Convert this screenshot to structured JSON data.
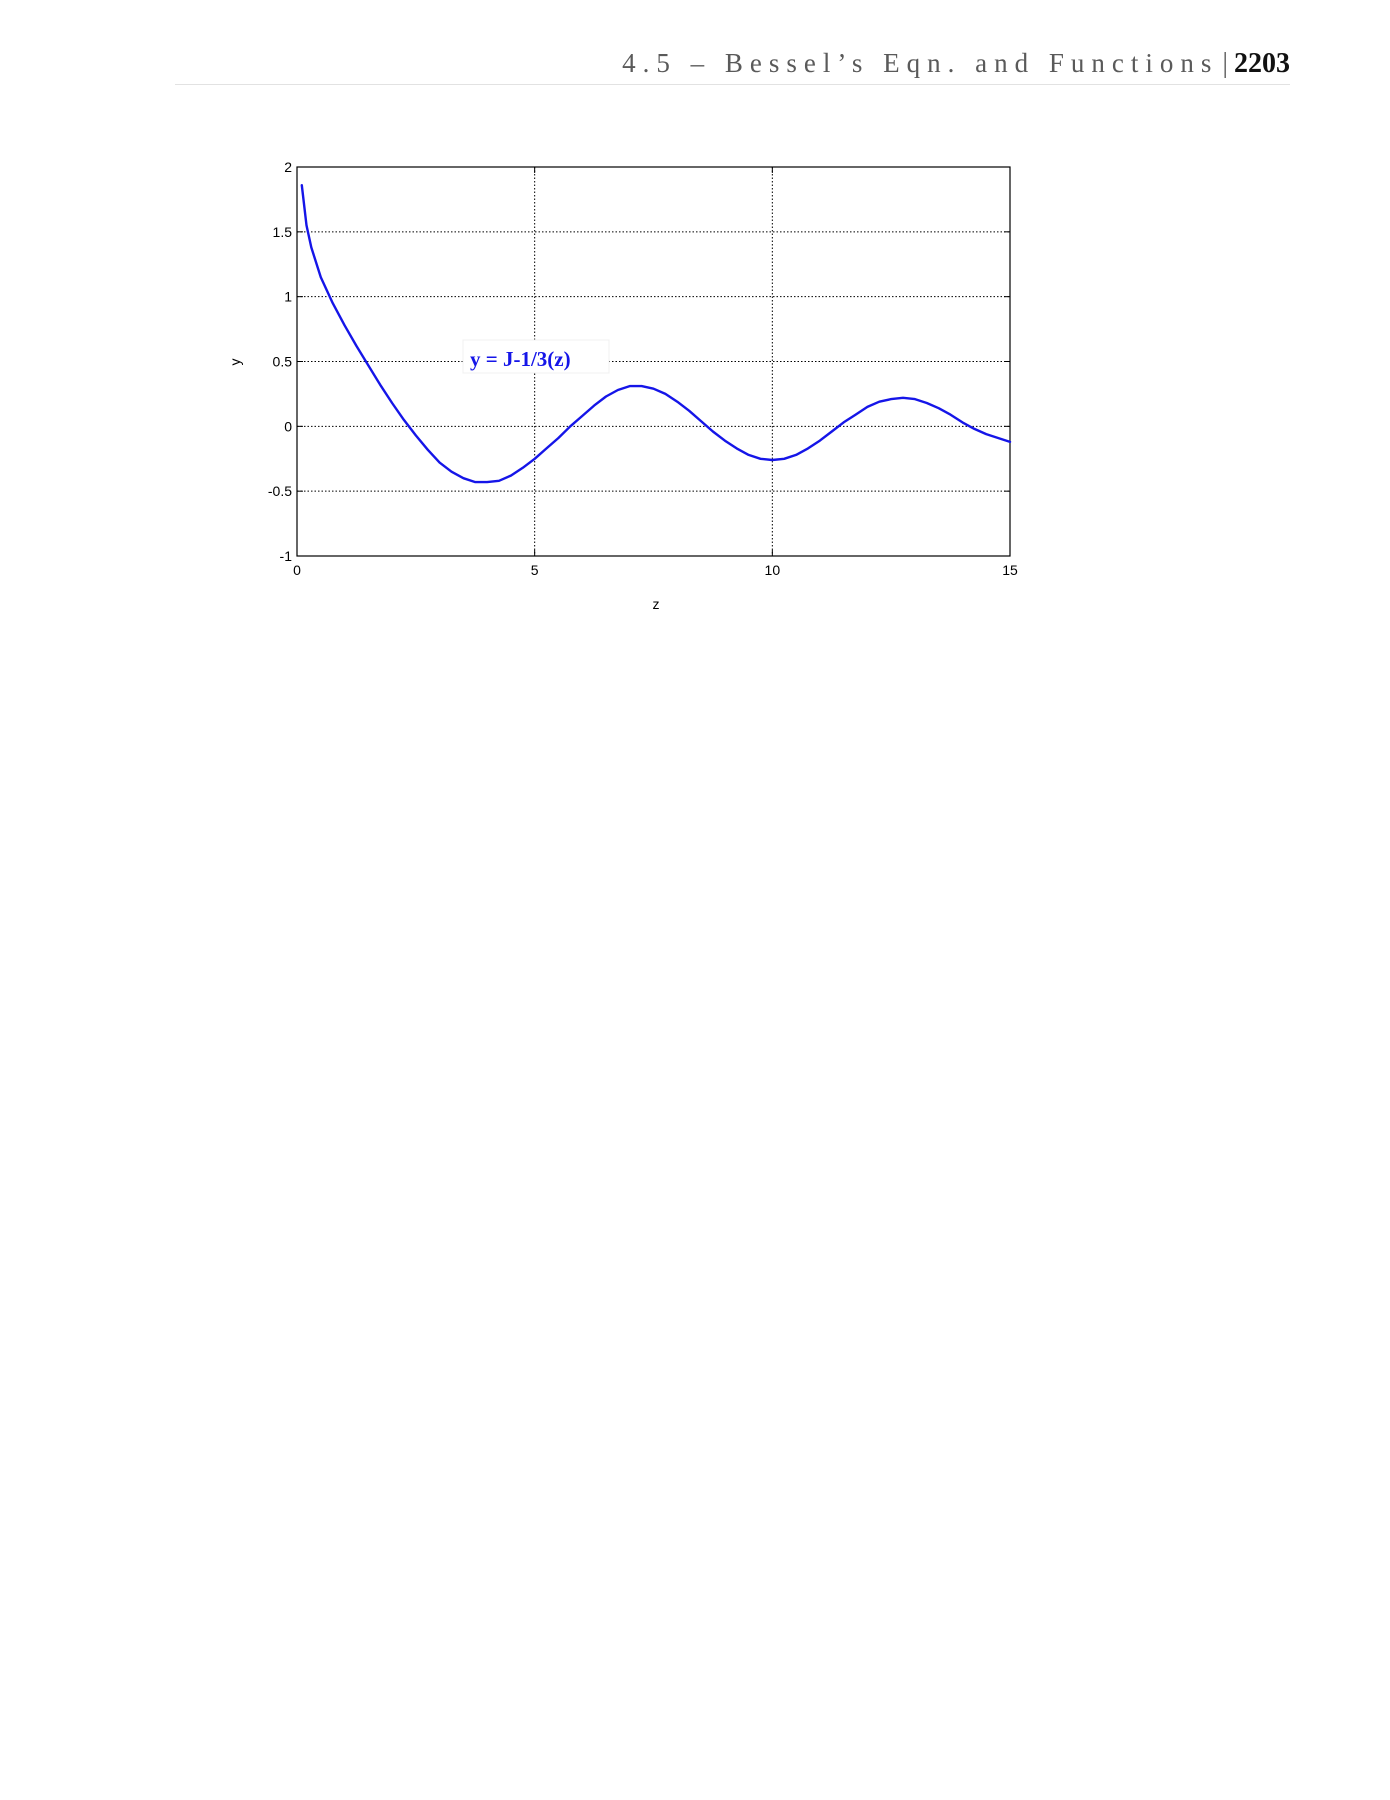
{
  "header": {
    "running_title": "4.5 – Bessel’s Eqn. and Functions",
    "separator": "|",
    "page_number": "2203"
  },
  "chart_data": {
    "type": "line",
    "xlabel": "z",
    "ylabel": "y",
    "xlim": [
      0,
      15
    ],
    "ylim": [
      -1,
      2
    ],
    "x_ticks": [
      0,
      5,
      10,
      15
    ],
    "y_ticks": [
      -1,
      -0.5,
      0,
      0.5,
      1,
      1.5,
      2
    ],
    "x_tick_labels": [
      "0",
      "5",
      "10",
      "15"
    ],
    "y_tick_labels": [
      "-1",
      "-0.5",
      "0",
      "0.5",
      "1",
      "1.5",
      "2"
    ],
    "grid": true,
    "annotation": "y = J-1/3(z)",
    "series": [
      {
        "color": "#1515e8",
        "x": [
          0.1,
          0.2,
          0.3,
          0.5,
          0.75,
          1.0,
          1.25,
          1.5,
          1.75,
          2.0,
          2.25,
          2.5,
          2.75,
          3.0,
          3.25,
          3.5,
          3.75,
          4.0,
          4.25,
          4.5,
          4.75,
          5.0,
          5.25,
          5.5,
          5.75,
          6.0,
          6.25,
          6.5,
          6.75,
          7.0,
          7.25,
          7.5,
          7.75,
          8.0,
          8.25,
          8.5,
          8.75,
          9.0,
          9.25,
          9.5,
          9.75,
          10.0,
          10.25,
          10.5,
          10.75,
          11.0,
          11.25,
          11.5,
          11.75,
          12.0,
          12.25,
          12.5,
          12.75,
          13.0,
          13.25,
          13.5,
          13.75,
          14.0,
          14.25,
          14.5,
          14.75,
          15.0
        ],
        "y": [
          1.86,
          1.55,
          1.38,
          1.15,
          0.95,
          0.78,
          0.62,
          0.47,
          0.32,
          0.18,
          0.05,
          -0.07,
          -0.18,
          -0.28,
          -0.35,
          -0.4,
          -0.43,
          -0.43,
          -0.42,
          -0.38,
          -0.32,
          -0.25,
          -0.17,
          -0.09,
          0.0,
          0.08,
          0.16,
          0.23,
          0.28,
          0.31,
          0.31,
          0.29,
          0.25,
          0.19,
          0.12,
          0.04,
          -0.04,
          -0.11,
          -0.17,
          -0.22,
          -0.25,
          -0.26,
          -0.25,
          -0.22,
          -0.17,
          -0.11,
          -0.04,
          0.03,
          0.09,
          0.15,
          0.19,
          0.21,
          0.22,
          0.21,
          0.18,
          0.14,
          0.09,
          0.03,
          -0.02,
          -0.06,
          -0.09,
          -0.12
        ]
      }
    ]
  }
}
